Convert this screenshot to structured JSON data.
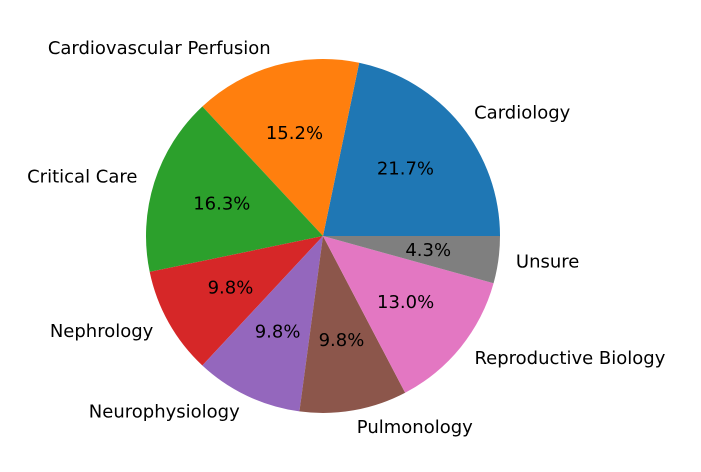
{
  "chart_data": {
    "type": "pie",
    "categories": [
      "Cardiology",
      "Cardiovascular Perfusion",
      "Critical Care",
      "Nephrology",
      "Neurophysiology",
      "Pulmonology",
      "Reproductive Biology",
      "Unsure"
    ],
    "values": [
      21.7,
      15.2,
      16.3,
      9.8,
      9.8,
      9.8,
      13.0,
      4.3
    ],
    "value_labels": [
      "21.7%",
      "15.2%",
      "16.3%",
      "9.8%",
      "9.8%",
      "9.8%",
      "13.0%",
      "4.3%"
    ],
    "colors": [
      "#1f77b4",
      "#ff7f0e",
      "#2ca02c",
      "#d62728",
      "#9467bd",
      "#8c564b",
      "#e377c2",
      "#7f7f7f"
    ],
    "start_angle_deg": 0,
    "direction": "counterclockwise",
    "legend": "none"
  }
}
